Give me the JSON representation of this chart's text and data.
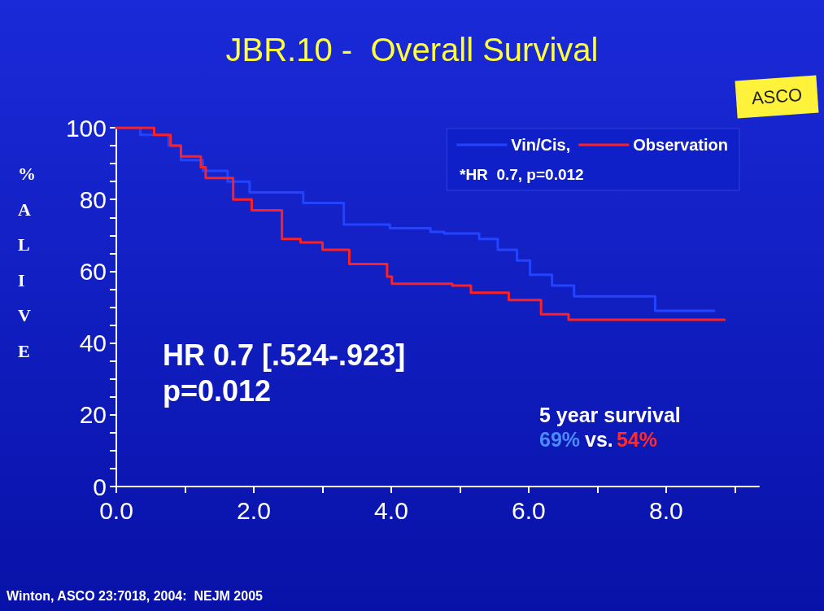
{
  "chart_data": {
    "type": "step",
    "title": "JBR.10 -  Overall Survival",
    "ylabel": "% ALIVE",
    "xlim": [
      0,
      9.35
    ],
    "xticks": [
      {
        "value": 0,
        "label": "0.0"
      },
      {
        "value": 1,
        "label": null
      },
      {
        "value": 2,
        "label": "2.0"
      },
      {
        "value": 3,
        "label": null
      },
      {
        "value": 4,
        "label": "4.0"
      },
      {
        "value": 5,
        "label": null
      },
      {
        "value": 6,
        "label": "6.0"
      },
      {
        "value": 7,
        "label": null
      },
      {
        "value": 8,
        "label": "8.0"
      },
      {
        "value": 9,
        "label": null
      }
    ],
    "ylim": [
      0,
      100
    ],
    "yticks": [
      0,
      {
        "value": 5,
        "label": null
      },
      {
        "value": 10,
        "label": null
      },
      {
        "value": 15,
        "label": null
      },
      20,
      {
        "value": 25,
        "label": null
      },
      {
        "value": 30,
        "label": null
      },
      {
        "value": 35,
        "label": null
      },
      40,
      {
        "value": 45,
        "label": null
      },
      {
        "value": 50,
        "label": null
      },
      {
        "value": 55,
        "label": null
      },
      60,
      {
        "value": 65,
        "label": null
      },
      {
        "value": 70,
        "label": null
      },
      {
        "value": 75,
        "label": null
      },
      80,
      {
        "value": 85,
        "label": null
      },
      {
        "value": 90,
        "label": null
      },
      {
        "value": 95,
        "label": null
      },
      100
    ],
    "grid": false,
    "legend": "top right",
    "marker": "none",
    "line_style": "solid",
    "series": [
      {
        "name": "Vin/Cis,",
        "color": "#2244ff",
        "x": [
          0,
          0.35,
          0.76,
          0.94,
          1.26,
          1.62,
          1.94,
          2.72,
          3.31,
          3.98,
          4.57,
          4.77,
          5.28,
          5.55,
          5.83,
          6.02,
          6.34,
          6.66,
          7.79,
          7.84,
          8.7
        ],
        "values": [
          100,
          98,
          95,
          91,
          88,
          85,
          82,
          79,
          73,
          72,
          71,
          70.5,
          69,
          66,
          63,
          59,
          56,
          53,
          53,
          49,
          49
        ]
      },
      {
        "name": "Observation",
        "color": "#ff2020",
        "x": [
          0,
          0.24,
          0.55,
          0.79,
          0.94,
          1.23,
          1.3,
          1.7,
          1.97,
          2.41,
          2.68,
          3.0,
          3.39,
          3.94,
          4.01,
          4.89,
          5.16,
          5.71,
          6.1,
          6.18,
          6.54,
          6.58,
          8.85
        ],
        "values": [
          100,
          100,
          98,
          95,
          92,
          89,
          86,
          80,
          77,
          69,
          68,
          66,
          62,
          58.5,
          56.5,
          56,
          54,
          52,
          52,
          48,
          48,
          46.5,
          46.5
        ]
      }
    ],
    "annotations": [
      "*HR  0.7, p=0.012",
      "HR 0.7 [.524-.923]",
      "p=0.012",
      "5 year survival",
      "69%",
      "vs.",
      "54%",
      "ASCO",
      "Winton, ASCO 23:7018, 2004:  NEJM 2005"
    ]
  }
}
